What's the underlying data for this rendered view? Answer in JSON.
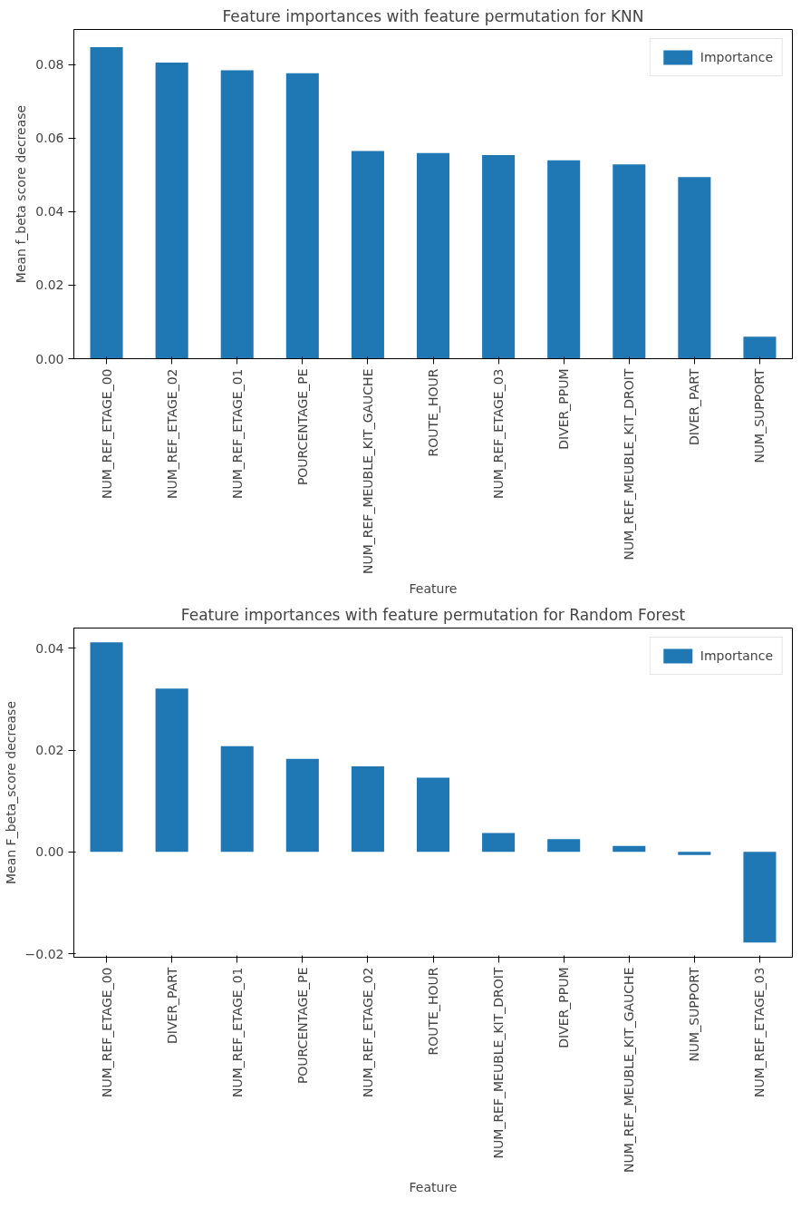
{
  "chart_data": [
    {
      "type": "bar",
      "title": "Feature importances with feature permutation for KNN",
      "xlabel": "Feature",
      "ylabel": "Mean f_beta score decrease",
      "categories": [
        "NUM_REF_ETAGE_00",
        "NUM_REF_ETAGE_02",
        "NUM_REF_ETAGE_01",
        "POURCENTAGE_PE",
        "NUM_REF_MEUBLE_KIT_GAUCHE",
        "ROUTE_HOUR",
        "NUM_REF_ETAGE_03",
        "DIVER_PPUM",
        "NUM_REF_MEUBLE_KIT_DROIT",
        "DIVER_PART",
        "NUM_SUPPORT"
      ],
      "series": [
        {
          "name": "Importance",
          "color": "#1f77b4",
          "values": [
            0.0848,
            0.0806,
            0.0785,
            0.0777,
            0.0565,
            0.056,
            0.0554,
            0.054,
            0.0529,
            0.0494,
            0.006
          ]
        }
      ],
      "ylim": [
        0,
        0.0896
      ],
      "yticks": [
        {
          "value": 0,
          "label": "0.00"
        },
        {
          "value": 0.02,
          "label": "0.02"
        },
        {
          "value": 0.04,
          "label": "0.04"
        },
        {
          "value": 0.06,
          "label": "0.06"
        },
        {
          "value": 0.08,
          "label": "0.08"
        }
      ],
      "legend": "top right",
      "grid": false
    },
    {
      "type": "bar",
      "title": "Feature importances with feature permutation for Random Forest",
      "xlabel": "Feature",
      "ylabel": "Mean F_beta_score decrease",
      "categories": [
        "NUM_REF_ETAGE_00",
        "DIVER_PART",
        "NUM_REF_ETAGE_01",
        "POURCENTAGE_PE",
        "NUM_REF_ETAGE_02",
        "ROUTE_HOUR",
        "NUM_REF_MEUBLE_KIT_DROIT",
        "DIVER_PPUM",
        "NUM_REF_MEUBLE_KIT_GAUCHE",
        "NUM_SUPPORT",
        "NUM_REF_ETAGE_03"
      ],
      "series": [
        {
          "name": "Importance",
          "color": "#1f77b4",
          "values": [
            0.0412,
            0.0321,
            0.0208,
            0.0183,
            0.0168,
            0.0146,
            0.0037,
            0.0025,
            0.0012,
            -0.0006,
            -0.0178
          ]
        }
      ],
      "ylim": [
        -0.0207,
        0.044
      ],
      "yticks": [
        {
          "value": -0.02,
          "label": "−0.02"
        },
        {
          "value": 0,
          "label": "0.00"
        },
        {
          "value": 0.02,
          "label": "0.02"
        },
        {
          "value": 0.04,
          "label": "0.04"
        }
      ],
      "legend": "top right",
      "grid": false
    }
  ]
}
